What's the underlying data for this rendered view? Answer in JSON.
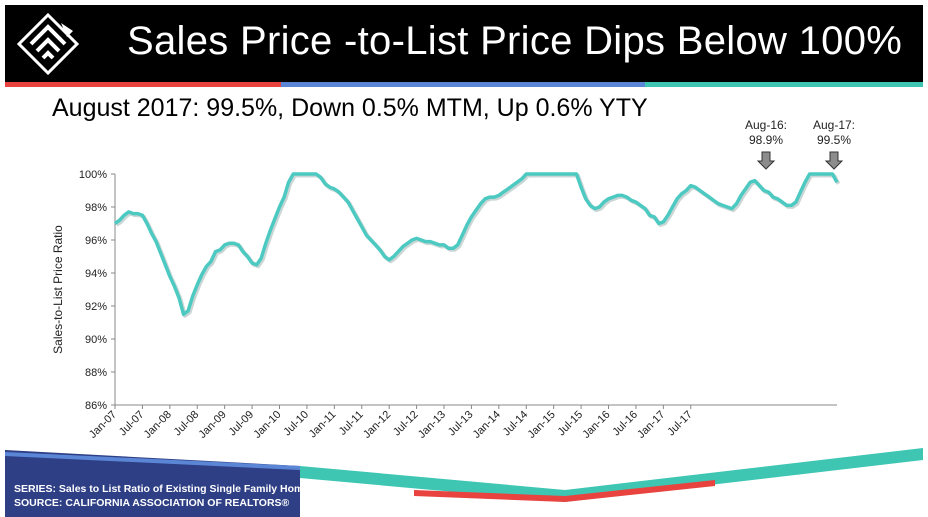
{
  "header": {
    "title": "Sales Price -to-List Price Dips Below 100%",
    "subtitle": "August 2017: 99.5%, Down 0.5% MTM, Up 0.6% YTY"
  },
  "colors": {
    "header_bg": "#000000",
    "accent_red": "#e8433f",
    "accent_blue": "#5b86d6",
    "accent_teal": "#3ec6b3",
    "footer_blue": "#2e3f86",
    "line": "#4cc9c1"
  },
  "callouts": [
    {
      "line1": "Aug-16:",
      "line2": "98.9%"
    },
    {
      "line1": "Aug-17:",
      "line2": "99.5%"
    }
  ],
  "footer": {
    "series": "SERIES: Sales to List Ratio of Existing Single Family Homes",
    "source": "SOURCE:  CALIFORNIA ASSOCIATION OF REALTORS®"
  },
  "chart_data": {
    "type": "line",
    "title": "",
    "xlabel": "",
    "ylabel": "Sales-to-List Price Ratio",
    "ylim": [
      86,
      100
    ],
    "y_ticks": [
      "86%",
      "88%",
      "90%",
      "92%",
      "94%",
      "96%",
      "98%",
      "100%"
    ],
    "x_tick_labels": [
      "Jan-07",
      "Jul-07",
      "Jan-08",
      "Jul-08",
      "Jan-09",
      "Jul-09",
      "Jan-10",
      "Jul-10",
      "Jan-11",
      "Jul-11",
      "Jan-12",
      "Jul-12",
      "Jan-13",
      "Jul-13",
      "Jan-14",
      "Jul-14",
      "Jan-15",
      "Jul-15",
      "Jan-16",
      "Jul-16",
      "Jan-17",
      "Jul-17"
    ],
    "start": "Jan-07",
    "end": "Aug-17",
    "grid": false,
    "legend": "none",
    "series": [
      {
        "values": [
          97.0,
          97.2,
          97.5,
          97.7,
          97.6,
          97.6,
          97.5,
          97.0,
          96.4,
          95.9,
          95.2,
          94.5,
          93.8,
          93.2,
          92.5,
          91.5,
          91.7,
          92.6,
          93.3,
          93.9,
          94.4,
          94.7,
          95.3,
          95.4,
          95.7,
          95.8,
          95.8,
          95.7,
          95.3,
          95.0,
          94.6,
          94.5,
          94.9,
          95.8,
          96.6,
          97.3,
          98.0,
          98.6,
          99.5,
          100.0,
          100.0,
          100.0,
          100.0,
          100.0,
          100.0,
          99.8,
          99.4,
          99.2,
          99.1,
          98.9,
          98.6,
          98.3,
          97.8,
          97.3,
          96.8,
          96.3,
          96.0,
          95.7,
          95.4,
          95.0,
          94.8,
          95.0,
          95.3,
          95.6,
          95.8,
          96.0,
          96.1,
          96.0,
          95.9,
          95.9,
          95.8,
          95.7,
          95.7,
          95.5,
          95.5,
          95.7,
          96.3,
          96.9,
          97.4,
          97.8,
          98.2,
          98.5,
          98.6,
          98.6,
          98.7,
          98.9,
          99.1,
          99.3,
          99.5,
          99.7,
          100.0,
          100.0,
          100.0,
          100.0,
          100.0,
          100.0,
          100.0,
          100.0,
          100.0,
          100.0,
          100.0,
          100.0,
          99.2,
          98.5,
          98.1,
          97.9,
          98.0,
          98.3,
          98.5,
          98.6,
          98.7,
          98.7,
          98.6,
          98.4,
          98.3,
          98.1,
          97.9,
          97.5,
          97.4,
          97.0,
          97.1,
          97.5,
          98.0,
          98.5,
          98.8,
          99.0,
          99.3,
          99.2,
          99.0,
          98.8,
          98.6,
          98.4,
          98.2,
          98.1,
          98.0,
          97.9,
          98.2,
          98.7,
          99.1,
          99.5,
          99.6,
          99.3,
          99.0,
          98.9,
          98.6,
          98.5,
          98.3,
          98.1,
          98.1,
          98.3,
          98.9,
          99.5,
          100.0,
          100.0,
          100.0,
          100.0,
          100.0,
          100.0,
          99.5
        ]
      }
    ]
  }
}
